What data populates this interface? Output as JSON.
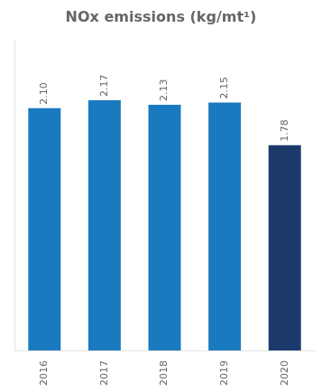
{
  "chart_data": {
    "type": "bar",
    "title": "NOx emissions (kg/mt¹)",
    "categories": [
      "2016",
      "2017",
      "2018",
      "2019",
      "2020"
    ],
    "values": [
      2.1,
      2.17,
      2.13,
      2.15,
      1.78
    ],
    "value_labels": [
      "2.10",
      "2.17",
      "2.13",
      "2.15",
      "1.78"
    ],
    "colors": [
      "#1a7abf",
      "#1a7abf",
      "#1a7abf",
      "#1a7abf",
      "#1b3a6b"
    ],
    "ylim": [
      0,
      2.7
    ],
    "grid": false,
    "data_labels": true,
    "tick_labels": "x"
  }
}
